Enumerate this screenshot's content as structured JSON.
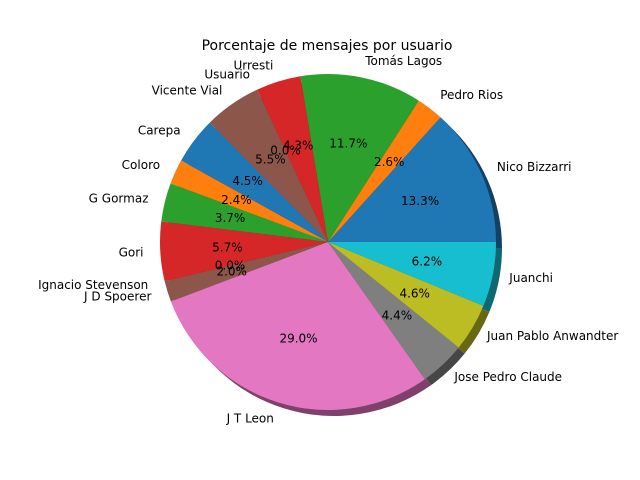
{
  "chart_data": {
    "type": "pie",
    "title": "Porcentaje de mensajes por usuario",
    "shadow": true,
    "start_angle_deg": 0,
    "direction": "counterclockwise",
    "slices": [
      {
        "label": "Nico Bizzarri",
        "value": 13.3,
        "pct_label": "13.3%",
        "color": "#1f77b4"
      },
      {
        "label": "Pedro Rios",
        "value": 2.6,
        "pct_label": "2.6%",
        "color": "#ff7f0e"
      },
      {
        "label": "Tomás Lagos",
        "value": 11.7,
        "pct_label": "11.7%",
        "color": "#2ca02c"
      },
      {
        "label": "Urresti",
        "value": 4.3,
        "pct_label": "4.3%",
        "color": "#d62728"
      },
      {
        "label": "Usuario",
        "value": 0.0,
        "pct_label": "0.0%",
        "color": "#9467bd"
      },
      {
        "label": "Vicente Vial",
        "value": 5.5,
        "pct_label": "5.5%",
        "color": "#8c564b"
      },
      {
        "label": "Carepa",
        "value": 4.5,
        "pct_label": "4.5%",
        "color": "#1f77b4"
      },
      {
        "label": "Coloro",
        "value": 2.4,
        "pct_label": "2.4%",
        "color": "#ff7f0e"
      },
      {
        "label": "G Gormaz",
        "value": 3.7,
        "pct_label": "3.7%",
        "color": "#2ca02c"
      },
      {
        "label": "Gori",
        "value": 5.7,
        "pct_label": "5.7%",
        "color": "#d62728"
      },
      {
        "label": "Ignacio Stevenson",
        "value": 0.0,
        "pct_label": "0.0%",
        "color": "#9467bd"
      },
      {
        "label": "J D Spoerer",
        "value": 2.0,
        "pct_label": "2.0%",
        "color": "#8c564b"
      },
      {
        "label": "J T Leon",
        "value": 29.0,
        "pct_label": "29.0%",
        "color": "#e377c2"
      },
      {
        "label": "Jose Pedro Claude",
        "value": 4.4,
        "pct_label": "4.4%",
        "color": "#7f7f7f"
      },
      {
        "label": "Juan Pablo Anwandter",
        "value": 4.6,
        "pct_label": "4.6%",
        "color": "#bcbd22"
      },
      {
        "label": "Juanchi",
        "value": 6.2,
        "pct_label": "6.2%",
        "color": "#17becf"
      }
    ]
  }
}
